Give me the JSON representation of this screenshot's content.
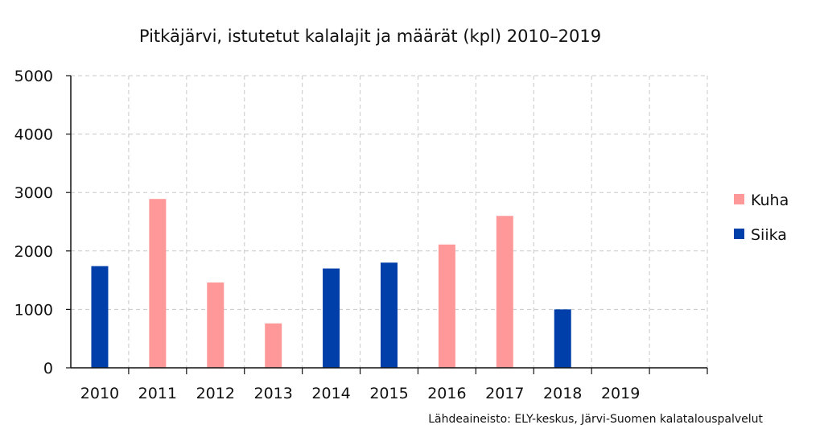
{
  "chart_data": {
    "type": "bar",
    "title": "Pitkäjärvi, istutetut kalalajit ja määrät (kpl) 2010–2019",
    "xlabel": "",
    "ylabel": "",
    "categories": [
      "2010",
      "2011",
      "2012",
      "2013",
      "2014",
      "2015",
      "2016",
      "2017",
      "2018",
      "2019"
    ],
    "series": [
      {
        "name": "Kuha",
        "color": "#ff9999",
        "values": [
          null,
          2890,
          1460,
          760,
          null,
          null,
          2110,
          2600,
          null,
          null
        ]
      },
      {
        "name": "Siika",
        "color": "#003fa9",
        "values": [
          1740,
          null,
          null,
          null,
          1700,
          1800,
          null,
          null,
          1000,
          null
        ]
      }
    ],
    "ylim": [
      0,
      5000
    ],
    "yticks": [
      0,
      1000,
      2000,
      3000,
      4000,
      5000
    ],
    "grid": true,
    "legend": "right",
    "source": "Lähdeaineisto: ELY-keskus, Järvi-Suomen kalatalouspalvelut"
  }
}
